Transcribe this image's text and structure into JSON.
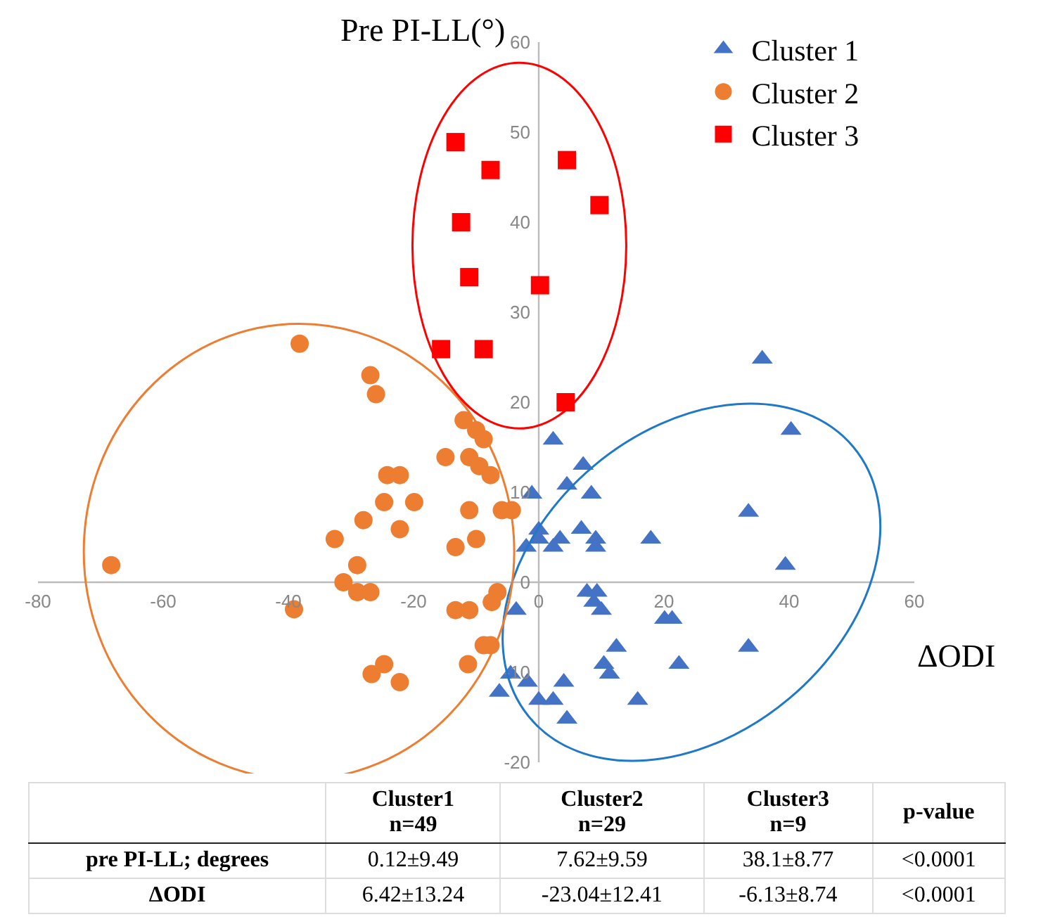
{
  "chart_data": {
    "type": "scatter",
    "xlabel": "ΔODI",
    "ylabel": "Pre PI-LL(°)",
    "xlim": [
      -80,
      60
    ],
    "xticks": [
      -80,
      -60,
      -40,
      -20,
      0,
      20,
      40,
      60
    ],
    "ylim": [
      -20,
      60
    ],
    "yticks": [
      -20,
      -10,
      0,
      10,
      20,
      30,
      40,
      50,
      60
    ],
    "grid": false,
    "legend": "top right",
    "series": [
      {
        "name": "Cluster 1",
        "color": "#4472c4",
        "marker": "triangle",
        "x": [
          35.7,
          40.3,
          2.3,
          7.1,
          4.5,
          -1.1,
          8.4,
          33.5,
          0,
          6.8,
          0,
          3.4,
          9.1,
          17.9,
          -2,
          2.3,
          9.1,
          39.4,
          7.7,
          9.3,
          8.8,
          10,
          -3.6,
          20.1,
          21.3,
          12.4,
          33.5,
          10.4,
          22.4,
          11.3,
          -4.5,
          -1.8,
          4,
          -6.3,
          0,
          2.3,
          15.8,
          4.5
        ],
        "values": [
          24.8,
          16.9,
          15.8,
          13,
          10.8,
          9.8,
          9.8,
          7.8,
          5.8,
          5.9,
          4.8,
          4.8,
          4.8,
          4.8,
          3.9,
          3.9,
          3.9,
          1.9,
          -1.1,
          -1.1,
          -2.2,
          -3.1,
          -3.1,
          -4.1,
          -4.1,
          -7.2,
          -7.2,
          -9.1,
          -9.1,
          -10.2,
          -10.2,
          -11.1,
          -11.1,
          -12.2,
          -13.1,
          -13.1,
          -13.1,
          -15.2
        ]
      },
      {
        "name": "Cluster 2",
        "color": "#ed7d31",
        "marker": "circle",
        "x": [
          -38.2,
          -26.9,
          -26,
          -12,
          -10,
          -8.8,
          -14.9,
          -11.1,
          -9.5,
          -7.7,
          -24.2,
          -22.2,
          -24.7,
          -19.9,
          -11.1,
          -5.9,
          -4.3,
          -28,
          -22.2,
          -32.6,
          -10,
          -13.3,
          -68.3,
          -29,
          -31.2,
          -29,
          -26.9,
          -6.6,
          -7.5,
          -39.1,
          -13.3,
          -11.1,
          -8.8,
          -7.7,
          -24.7,
          -11.3,
          -26.7,
          -22.2
        ],
        "values": [
          26.5,
          23,
          20.9,
          18,
          16.9,
          15.9,
          13.9,
          13.9,
          12.9,
          11.9,
          11.9,
          11.9,
          8.9,
          8.9,
          8,
          8,
          8,
          6.9,
          5.9,
          4.8,
          4.8,
          3.9,
          1.9,
          1.9,
          0,
          -1.1,
          -1.1,
          -1.1,
          -2.2,
          -3,
          -3.1,
          -3.1,
          -7,
          -7,
          -9.1,
          -9.1,
          -10.2,
          -11.1
        ]
      },
      {
        "name": "Cluster 3",
        "color": "#ff0000",
        "marker": "square",
        "x": [
          -13.3,
          -7.7,
          4.5,
          9.7,
          -12.4,
          -11.1,
          0.2,
          -15.6,
          -8.8,
          4.3
        ],
        "values": [
          48.9,
          45.8,
          46.9,
          41.9,
          40,
          33.9,
          33,
          25.9,
          25.9,
          20
        ]
      }
    ],
    "annotations": [
      "Cluster1\nn=49",
      "Cluster2\nn=29",
      "Cluster3\nn=9",
      "p-value",
      "pre PI-LL; degrees",
      "0.12±9.49",
      "7.62±9.59",
      "38.1±8.77",
      "<0.0001",
      "ΔODI",
      "6.42±13.24",
      "-23.04±12.41",
      "-6.13±8.74",
      "<0.0001"
    ]
  }
}
